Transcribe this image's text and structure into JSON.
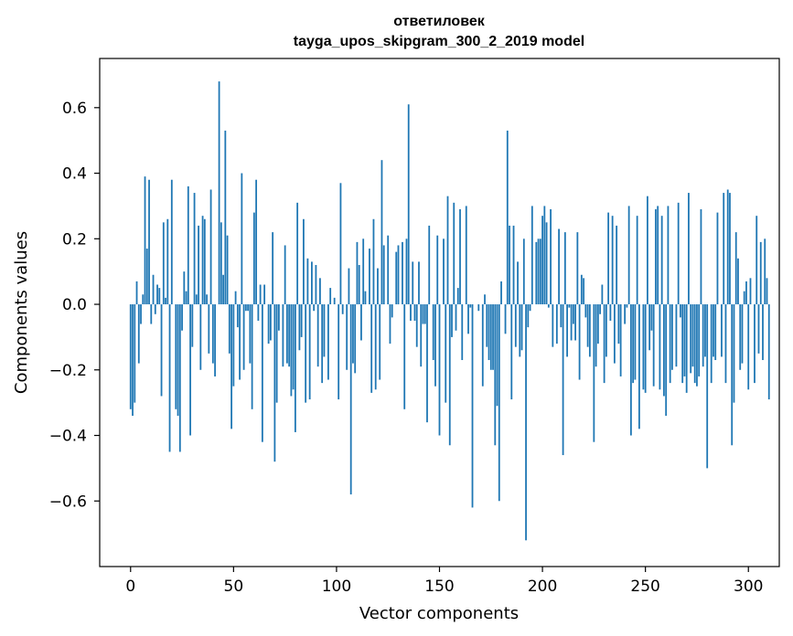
{
  "chart_data": {
    "type": "bar",
    "title_line1": "ответиловек",
    "title_line2": "tayga_upos_skipgram_300_2_2019 model",
    "xlabel": "Vector components",
    "ylabel": "Components values",
    "xlim": [
      -15,
      315
    ],
    "ylim": [
      -0.8,
      0.75
    ],
    "x_ticks": [
      0,
      50,
      100,
      150,
      200,
      250,
      300
    ],
    "x_tick_labels": [
      "0",
      "50",
      "100",
      "150",
      "200",
      "250",
      "300"
    ],
    "y_ticks": [
      -0.6,
      -0.4,
      -0.2,
      0.0,
      0.2,
      0.4,
      0.6
    ],
    "y_tick_labels": [
      "−0.6",
      "−0.4",
      "−0.2",
      "0.0",
      "0.2",
      "0.4",
      "0.6"
    ],
    "grid": false,
    "bar_color": "#1f77b4",
    "x_start": 0,
    "values": [
      -0.32,
      -0.34,
      -0.3,
      0.07,
      -0.18,
      -0.06,
      0.03,
      0.39,
      0.17,
      0.38,
      -0.06,
      0.09,
      -0.03,
      0.06,
      0.05,
      -0.28,
      0.25,
      0.02,
      0.26,
      -0.45,
      0.38,
      0.0,
      -0.32,
      -0.34,
      -0.45,
      -0.08,
      0.1,
      0.04,
      0.36,
      -0.4,
      -0.13,
      0.34,
      0.03,
      0.24,
      -0.2,
      0.27,
      0.26,
      0.03,
      -0.15,
      0.35,
      -0.18,
      -0.22,
      0.0,
      0.68,
      0.25,
      0.09,
      0.53,
      0.21,
      -0.15,
      -0.38,
      -0.25,
      0.04,
      -0.07,
      -0.23,
      0.4,
      -0.2,
      -0.02,
      -0.02,
      -0.18,
      -0.32,
      0.28,
      0.38,
      -0.05,
      0.06,
      -0.42,
      0.06,
      0.0,
      -0.12,
      -0.11,
      0.22,
      -0.48,
      -0.3,
      -0.08,
      0.0,
      -0.19,
      0.18,
      -0.18,
      -0.19,
      -0.28,
      -0.26,
      -0.39,
      0.31,
      -0.14,
      -0.1,
      0.26,
      -0.3,
      0.14,
      -0.29,
      0.13,
      -0.02,
      0.12,
      -0.19,
      0.08,
      -0.24,
      -0.16,
      0.0,
      -0.23,
      0.05,
      0.0,
      0.02,
      0.0,
      -0.29,
      0.37,
      -0.03,
      0.0,
      -0.2,
      0.11,
      -0.58,
      -0.18,
      -0.21,
      0.19,
      0.12,
      -0.11,
      0.2,
      0.04,
      0.0,
      0.17,
      -0.27,
      0.26,
      -0.26,
      0.11,
      -0.23,
      0.44,
      0.18,
      0.0,
      0.21,
      -0.12,
      -0.04,
      0.0,
      0.16,
      0.18,
      0.0,
      0.19,
      -0.32,
      0.2,
      0.61,
      -0.05,
      0.13,
      -0.05,
      -0.13,
      0.13,
      -0.19,
      -0.06,
      -0.06,
      -0.36,
      0.24,
      0.0,
      -0.17,
      -0.25,
      0.21,
      -0.4,
      0.0,
      0.2,
      -0.3,
      0.33,
      -0.43,
      -0.1,
      0.31,
      -0.08,
      0.05,
      0.29,
      -0.17,
      0.0,
      0.3,
      -0.09,
      -0.01,
      -0.62,
      0.0,
      0.0,
      -0.02,
      0.0,
      -0.25,
      0.03,
      -0.13,
      -0.17,
      -0.2,
      -0.2,
      -0.43,
      -0.31,
      -0.6,
      0.07,
      0.0,
      -0.09,
      0.53,
      0.24,
      -0.29,
      0.24,
      -0.13,
      0.13,
      -0.16,
      -0.14,
      0.2,
      -0.72,
      -0.07,
      -0.02,
      0.3,
      0.0,
      0.19,
      0.2,
      0.2,
      0.27,
      0.3,
      0.25,
      -0.01,
      0.29,
      -0.13,
      0.0,
      -0.12,
      0.23,
      -0.07,
      -0.46,
      0.22,
      -0.16,
      -0.01,
      -0.11,
      -0.06,
      -0.11,
      0.22,
      -0.23,
      0.09,
      0.08,
      -0.04,
      -0.13,
      -0.16,
      0.0,
      -0.42,
      -0.19,
      -0.12,
      -0.03,
      0.06,
      -0.24,
      -0.16,
      0.28,
      -0.05,
      0.27,
      -0.18,
      0.24,
      -0.12,
      -0.22,
      0.0,
      -0.06,
      -0.01,
      0.3,
      -0.4,
      -0.24,
      -0.23,
      0.27,
      -0.38,
      0.0,
      -0.26,
      -0.27,
      0.33,
      -0.14,
      -0.08,
      -0.25,
      0.29,
      0.3,
      -0.26,
      0.27,
      -0.28,
      -0.34,
      0.3,
      -0.24,
      -0.2,
      0.0,
      -0.19,
      0.31,
      -0.04,
      -0.24,
      -0.22,
      -0.27,
      0.34,
      -0.21,
      -0.19,
      -0.24,
      -0.25,
      -0.22,
      0.29,
      -0.19,
      -0.16,
      -0.5,
      0.0,
      -0.24,
      -0.16,
      -0.17,
      0.28,
      0.0,
      -0.16,
      0.34,
      -0.24,
      0.35,
      0.34,
      -0.43,
      -0.3,
      0.22,
      0.14,
      -0.2,
      -0.18,
      0.04,
      0.07,
      -0.26,
      0.08,
      0.0,
      -0.24,
      0.27,
      -0.15,
      0.19,
      -0.17,
      0.2,
      0.08,
      -0.29
    ]
  }
}
